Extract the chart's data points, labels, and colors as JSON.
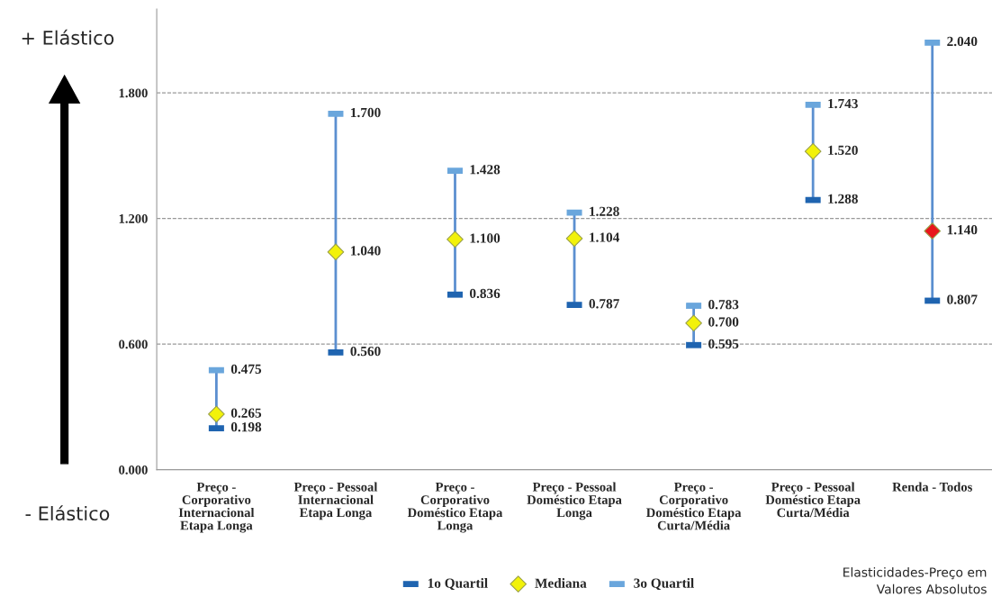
{
  "chart_data": {
    "type": "scatter",
    "categories": [
      "Preço - Corporativo Internacional Etapa Longa",
      "Preço - Pessoal Internacional Etapa Longa",
      "Preço - Corporativo Doméstico Etapa Longa",
      "Preço - Pessoal Doméstico Etapa Longa",
      "Preço - Corporativo Doméstico Etapa Curta/Média",
      "Preço - Pessoal Doméstico Etapa Curta/Média",
      "Renda - Todos"
    ],
    "series": [
      {
        "name": "1o Quartil",
        "color": "#1f64b0",
        "values": [
          0.198,
          0.56,
          0.836,
          0.787,
          0.595,
          1.288,
          0.807
        ],
        "value_labels": [
          "0.198",
          "0.560",
          "0.836",
          "0.787",
          "0.595",
          "1.288",
          "0.807"
        ]
      },
      {
        "name": "Mediana",
        "color": "#5b8fd0",
        "colors": [
          "#f2f20a",
          "#f2f20a",
          "#f2f20a",
          "#f2f20a",
          "#f2f20a",
          "#f2f20a",
          "#e8161c"
        ],
        "marker": "diamond",
        "values": [
          0.265,
          1.04,
          1.1,
          1.104,
          0.7,
          1.52,
          1.14
        ],
        "value_labels": [
          "0.265",
          "1.040",
          "1.100",
          "1.104",
          "0.700",
          "1.520",
          "1.140"
        ]
      },
      {
        "name": "3o Quartil",
        "color": "#6aa6dc",
        "values": [
          0.475,
          1.7,
          1.428,
          1.228,
          0.783,
          1.743,
          2.04
        ],
        "value_labels": [
          "0.475",
          "1.700",
          "1.428",
          "1.228",
          "0.783",
          "1.743",
          "2.040"
        ]
      }
    ],
    "ylim": [
      0,
      2.2
    ],
    "yticks": [
      {
        "value": 0,
        "label": "0.000"
      },
      {
        "value": 0.6,
        "label": "0.600"
      },
      {
        "value": 1.2,
        "label": "1.200"
      },
      {
        "value": 1.8,
        "label": "1.800"
      }
    ],
    "grid": "y",
    "legend": "bottom",
    "annotations": [
      "+ Elástico",
      "- Elástico",
      "Elasticidades-Preço em\nValores Absolutos"
    ]
  }
}
